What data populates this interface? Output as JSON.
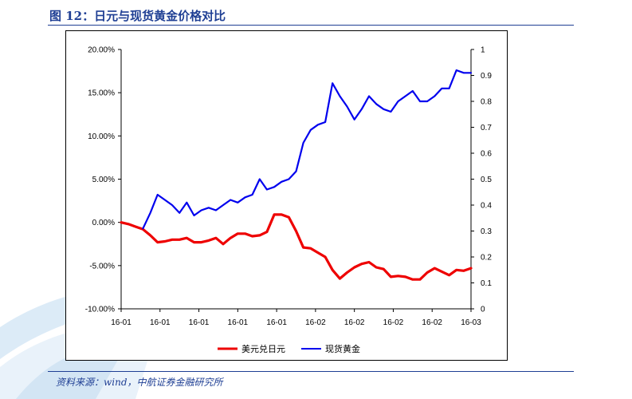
{
  "header": {
    "title": "图 12：日元与现货黄金价格对比"
  },
  "footnote": "资料来源：wind，中航证券金融研究所",
  "colors": {
    "accent": "#1f3f94",
    "series_jpy": "#ee0000",
    "series_gold": "#0000ee"
  },
  "chart_data": {
    "type": "line",
    "title": "",
    "xlabel": "",
    "x_tick_labels": [
      "16-01",
      "16-01",
      "16-01",
      "16-01",
      "16-01",
      "16-02",
      "16-02",
      "16-02",
      "16-02",
      "16-03"
    ],
    "y_left": {
      "min": -0.1,
      "max": 0.2,
      "tick_labels": [
        "-10.00%",
        "-5.00%",
        "0.00%",
        "5.00%",
        "10.00%",
        "15.00%",
        "20.00%"
      ]
    },
    "y_right": {
      "min": 0,
      "max": 1,
      "tick_labels": [
        "0",
        "0.1",
        "0.2",
        "0.3",
        "0.4",
        "0.5",
        "0.6",
        "0.7",
        "0.8",
        "0.9",
        "1"
      ]
    },
    "legend": {
      "placement": "bottom"
    },
    "series": [
      {
        "name": "美元兑日元",
        "axis": "left",
        "color": "#ee0000",
        "values": [
          0.0,
          -0.002,
          -0.005,
          -0.008,
          -0.015,
          -0.023,
          -0.022,
          -0.02,
          -0.02,
          -0.018,
          -0.023,
          -0.023,
          -0.021,
          -0.018,
          -0.025,
          -0.018,
          -0.013,
          -0.013,
          -0.016,
          -0.015,
          -0.011,
          0.009,
          0.009,
          0.006,
          -0.01,
          -0.029,
          -0.03,
          -0.035,
          -0.04,
          -0.055,
          -0.065,
          -0.058,
          -0.052,
          -0.048,
          -0.046,
          -0.052,
          -0.054,
          -0.063,
          -0.062,
          -0.063,
          -0.066,
          -0.066,
          -0.058,
          -0.053,
          -0.057,
          -0.061,
          -0.055,
          -0.056,
          -0.053
        ]
      },
      {
        "name": "现货黄金",
        "axis": "right",
        "color": "#0000ee",
        "values": [
          null,
          null,
          null,
          0.31,
          0.37,
          0.44,
          0.42,
          0.4,
          0.37,
          0.41,
          0.36,
          0.38,
          0.39,
          0.38,
          0.4,
          0.42,
          0.41,
          0.43,
          0.44,
          0.5,
          0.46,
          0.47,
          0.49,
          0.5,
          0.53,
          0.64,
          0.69,
          0.71,
          0.72,
          0.87,
          0.82,
          0.78,
          0.73,
          0.77,
          0.82,
          0.79,
          0.77,
          0.76,
          0.8,
          0.82,
          0.84,
          0.8,
          0.8,
          0.82,
          0.85,
          0.85,
          0.92,
          0.91,
          0.91
        ]
      }
    ]
  }
}
